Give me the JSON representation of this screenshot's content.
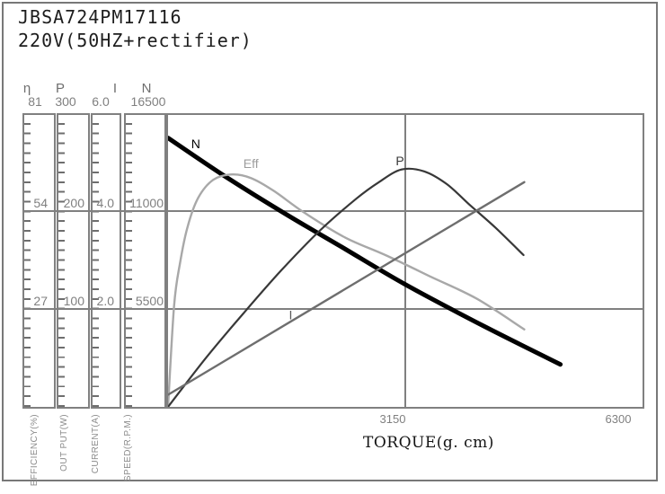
{
  "header": {
    "title": "JBSA724PM17116",
    "subtitle": "220V(50HZ+rectifier)"
  },
  "colors": {
    "frame": "#787878",
    "grid": "#808080",
    "tick": "#6e6e6e",
    "axis_text": "#808080",
    "title_text": "#1d1d1d"
  },
  "chart_data": {
    "type": "line",
    "title": "JBSA724PM17116",
    "subtitle": "220V(50HZ+rectifier)",
    "xlabel": "TORQUE(g. cm)",
    "x_range": [
      0,
      6300
    ],
    "x_tick_labels": [
      "3150",
      "6300"
    ],
    "grid": "horizontal thirds across all axes + vertical line at 3150",
    "legend_position": "labels on curves",
    "axes": [
      {
        "id": "eff",
        "symbol": "η",
        "label": "EFFICIENCY(%)",
        "max": 81,
        "tick_labels": [
          "81",
          "54",
          "27"
        ]
      },
      {
        "id": "p",
        "symbol": "P",
        "label": "OUT PUT(W)",
        "max": 300,
        "tick_labels": [
          "300",
          "200",
          "100"
        ]
      },
      {
        "id": "i",
        "symbol": "I",
        "label": "CURRENT(A)",
        "max": 6.0,
        "tick_labels": [
          "6.0",
          "4.0",
          "2.0"
        ]
      },
      {
        "id": "n",
        "symbol": "N",
        "label": "SPEED(R.P.M.)",
        "max": 16500,
        "tick_labels": [
          "16500",
          "11000",
          "5500"
        ]
      }
    ],
    "series": [
      {
        "name": "N",
        "axis": "n",
        "unit": "R.P.M.",
        "color": "#000000",
        "stroke_width": 5,
        "label": "N",
        "label_color": "#000000",
        "label_at": [
          368,
          14885
        ],
        "points": [
          [
            0,
            15200
          ],
          [
            750,
            13050
          ],
          [
            1522,
            11000
          ],
          [
            2300,
            9050
          ],
          [
            3150,
            6920
          ],
          [
            4200,
            4550
          ],
          [
            5210,
            2400
          ]
        ]
      },
      {
        "name": "Eff",
        "axis": "eff",
        "unit": "%",
        "color": "#a8a8a8",
        "stroke_width": 2.4,
        "label": "Eff",
        "label_color": "#9c9c9c",
        "label_at": [
          1100,
          67.5
        ],
        "points": [
          [
            0,
            0
          ],
          [
            80,
            28
          ],
          [
            160,
            40
          ],
          [
            260,
            50
          ],
          [
            400,
            58
          ],
          [
            600,
            63
          ],
          [
            850,
            64.5
          ],
          [
            1100,
            63.5
          ],
          [
            1400,
            60
          ],
          [
            1800,
            54
          ],
          [
            2350,
            47
          ],
          [
            2900,
            42
          ],
          [
            3500,
            36
          ],
          [
            4100,
            30
          ],
          [
            4730,
            21.5
          ]
        ]
      },
      {
        "name": "P",
        "axis": "p",
        "unit": "W",
        "color": "#383838",
        "stroke_width": 2.2,
        "label": "P",
        "label_color": "#383838",
        "label_at": [
          3080,
          253
        ],
        "points": [
          [
            0,
            0
          ],
          [
            500,
            50
          ],
          [
            1000,
            96
          ],
          [
            1500,
            140
          ],
          [
            2000,
            180
          ],
          [
            2500,
            214
          ],
          [
            2800,
            231
          ],
          [
            3100,
            244
          ],
          [
            3400,
            242
          ],
          [
            3700,
            229
          ],
          [
            4000,
            208
          ],
          [
            4350,
            184
          ],
          [
            4720,
            156
          ]
        ]
      },
      {
        "name": "I",
        "axis": "i",
        "unit": "A",
        "color": "#6e6e6e",
        "stroke_width": 2.4,
        "label": "I",
        "label_color": "#5a5a5a",
        "label_at": [
          1629,
          1.89
        ],
        "points": [
          [
            0,
            0.25
          ],
          [
            4730,
            4.62
          ]
        ]
      }
    ]
  }
}
